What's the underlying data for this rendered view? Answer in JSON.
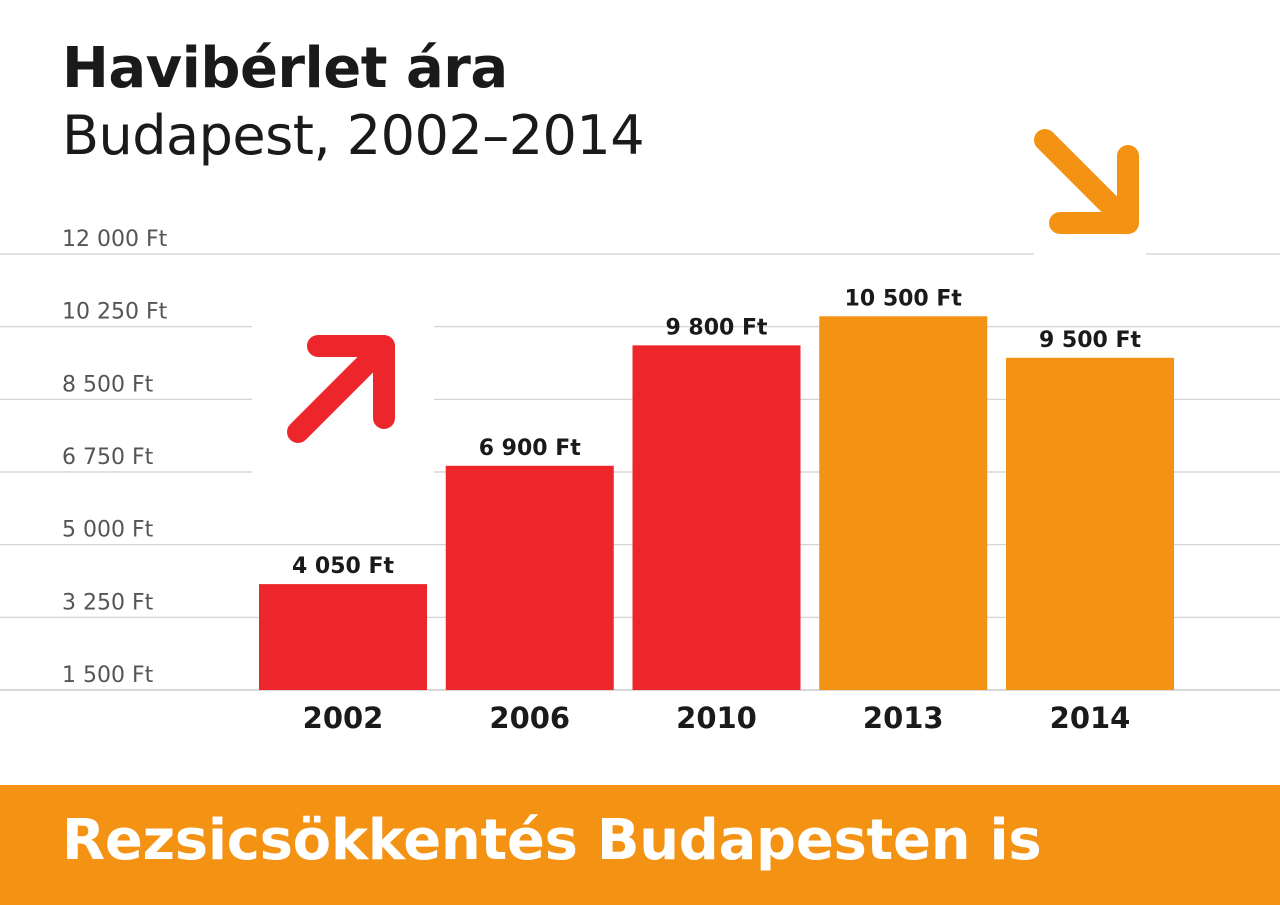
{
  "header": {
    "title": "Havibérlet ára",
    "subtitle": "Budapest, 2002–2014"
  },
  "footer": {
    "text": "Rezsicsökkentés Budapesten is"
  },
  "colors": {
    "increase": "#EC262A",
    "decrease": "#F39213",
    "footer_band": "#F39213",
    "grid": "#cfcfcf",
    "tick_text": "#555555",
    "label_text": "#1a1a1a"
  },
  "icons": {
    "up_arrow": "arrow-up-right-icon",
    "down_arrow": "arrow-down-right-icon"
  },
  "chart_data": {
    "type": "bar",
    "title": "Havibérlet ára",
    "subtitle": "Budapest, 2002–2014",
    "xlabel": "",
    "ylabel": "",
    "categories": [
      "2002",
      "2006",
      "2010",
      "2013",
      "2014"
    ],
    "values": [
      4050,
      6900,
      9800,
      10500,
      9500
    ],
    "value_labels": [
      "4 050 Ft",
      "6 900 Ft",
      "9 800 Ft",
      "10 500 Ft",
      "9 500 Ft"
    ],
    "bar_colors": [
      "#EC262A",
      "#EC262A",
      "#EC262A",
      "#F39213",
      "#F39213"
    ],
    "ylim": [
      1500,
      12000
    ],
    "yticks": [
      1500,
      3250,
      5000,
      6750,
      8500,
      10250,
      12000
    ],
    "ytick_labels": [
      "1 500 Ft",
      "3 250 Ft",
      "5 000 Ft",
      "6 750 Ft",
      "8 500 Ft",
      "10 250 Ft",
      "12 000 Ft"
    ],
    "grid": true,
    "legend": "none"
  }
}
